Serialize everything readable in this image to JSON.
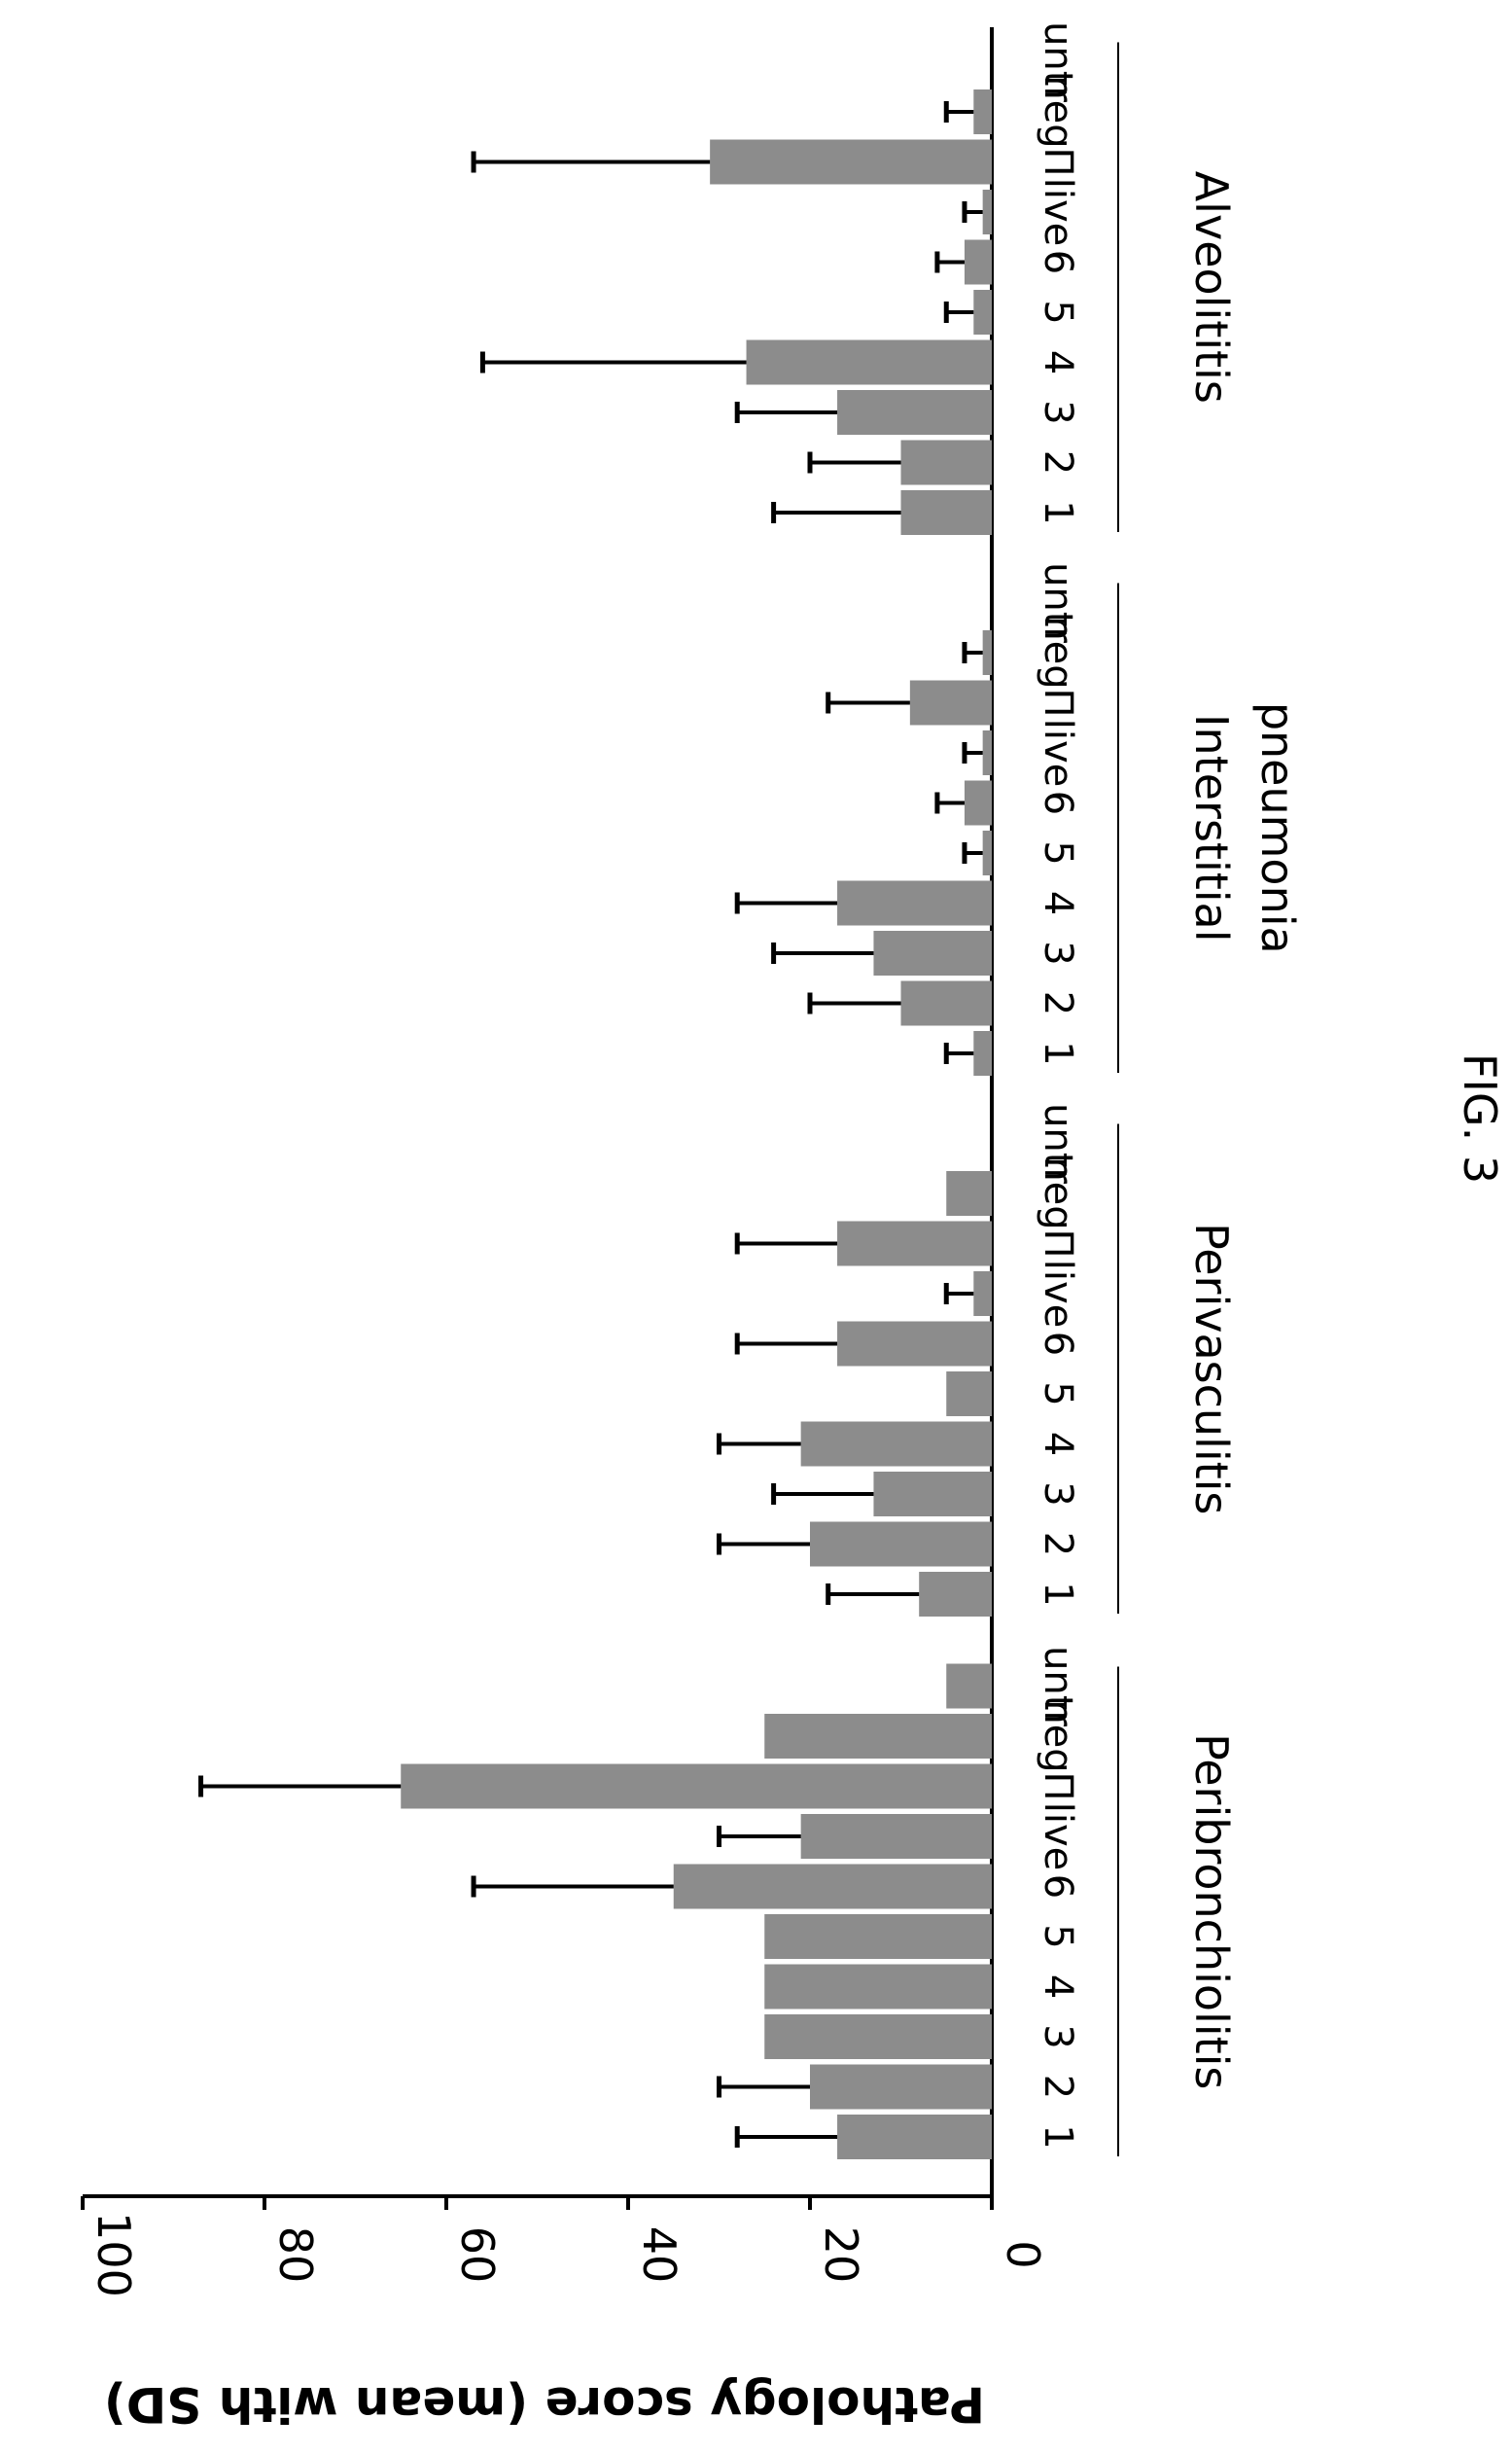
{
  "chart_data": {
    "type": "bar",
    "ylabel": "Pathology score (mean with SD)",
    "ylim": [
      0,
      100
    ],
    "yticks": [
      "0",
      "20",
      "40",
      "60",
      "80",
      "100"
    ],
    "bar_color": "#8c8c8c",
    "groups": [
      {
        "name": "Peribronchiolitis",
        "categories": [
          "1",
          "2",
          "3",
          "4",
          "5",
          "6",
          "live",
          "Π",
          "neg",
          "untr"
        ],
        "values": [
          17,
          20,
          25,
          25,
          25,
          35,
          21,
          65,
          25,
          5
        ],
        "sd": [
          11,
          10,
          null,
          null,
          null,
          22,
          9,
          22,
          null,
          null
        ]
      },
      {
        "name": "Perivasculitis",
        "categories": [
          "1",
          "2",
          "3",
          "4",
          "5",
          "6",
          "live",
          "Π",
          "neg",
          "untr"
        ],
        "values": [
          8,
          20,
          13,
          21,
          5,
          17,
          2,
          17,
          5,
          null
        ],
        "sd": [
          10,
          10,
          11,
          9,
          null,
          11,
          3,
          11,
          null,
          null
        ]
      },
      {
        "name": "Interstitial pneumonia",
        "categories": [
          "1",
          "2",
          "3",
          "4",
          "5",
          "6",
          "live",
          "Π",
          "neg",
          "untr"
        ],
        "values": [
          2,
          10,
          13,
          17,
          1,
          3,
          1,
          9,
          1,
          null
        ],
        "sd": [
          3,
          10,
          11,
          11,
          2,
          3,
          2,
          9,
          2,
          null
        ]
      },
      {
        "name": "Alveolititis",
        "categories": [
          "1",
          "2",
          "3",
          "4",
          "5",
          "6",
          "live",
          "Π",
          "neg",
          "untr"
        ],
        "values": [
          10,
          10,
          17,
          27,
          2,
          3,
          1,
          31,
          2,
          null
        ],
        "sd": [
          14,
          10,
          11,
          29,
          3,
          3,
          2,
          26,
          3,
          null
        ]
      }
    ]
  },
  "figure_label": "FIG. 3"
}
